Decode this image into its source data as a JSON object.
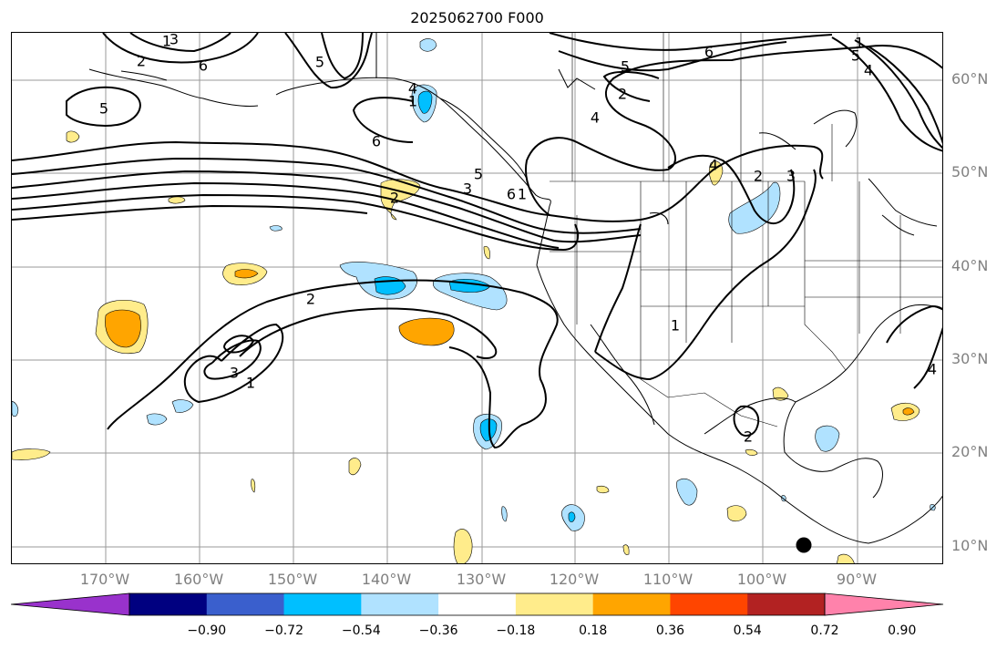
{
  "title": "2025062700 F000",
  "lat_labels": [
    "60°N",
    "50°N",
    "40°N",
    "30°N",
    "20°N",
    "10°N"
  ],
  "lon_labels": [
    "170°W",
    "160°W",
    "150°W",
    "140°W",
    "130°W",
    "120°W",
    "110°W",
    "100°W",
    "90°W"
  ],
  "contour_labels": [
    "5",
    "6",
    "2",
    "3",
    "4",
    "5",
    "6",
    "5",
    "6",
    "2",
    "3",
    "4",
    "2",
    "6",
    "5",
    "4",
    "5",
    "2",
    "4",
    "3",
    "2",
    "1",
    "1",
    "2",
    "4",
    "3",
    "1",
    "1",
    "1",
    "1"
  ],
  "colorbar": {
    "tick_labels": [
      "−0.90",
      "−0.72",
      "−0.54",
      "−0.36",
      "−0.18",
      "0.18",
      "0.36",
      "0.54",
      "0.72",
      "0.90"
    ],
    "colors": [
      "#9932cc",
      "#000080",
      "#3a5fcd",
      "#00bfff",
      "#b0e2ff",
      "#ffffff",
      "#ffec8b",
      "#ffa500",
      "#ff4500",
      "#b22222",
      "#ff82ab"
    ]
  },
  "fill_colors": {
    "light_blue": "#b0e2ff",
    "blue": "#00bfff",
    "light_yellow": "#ffec8b",
    "orange": "#ffa500"
  },
  "marker": {
    "color": "#000000"
  }
}
